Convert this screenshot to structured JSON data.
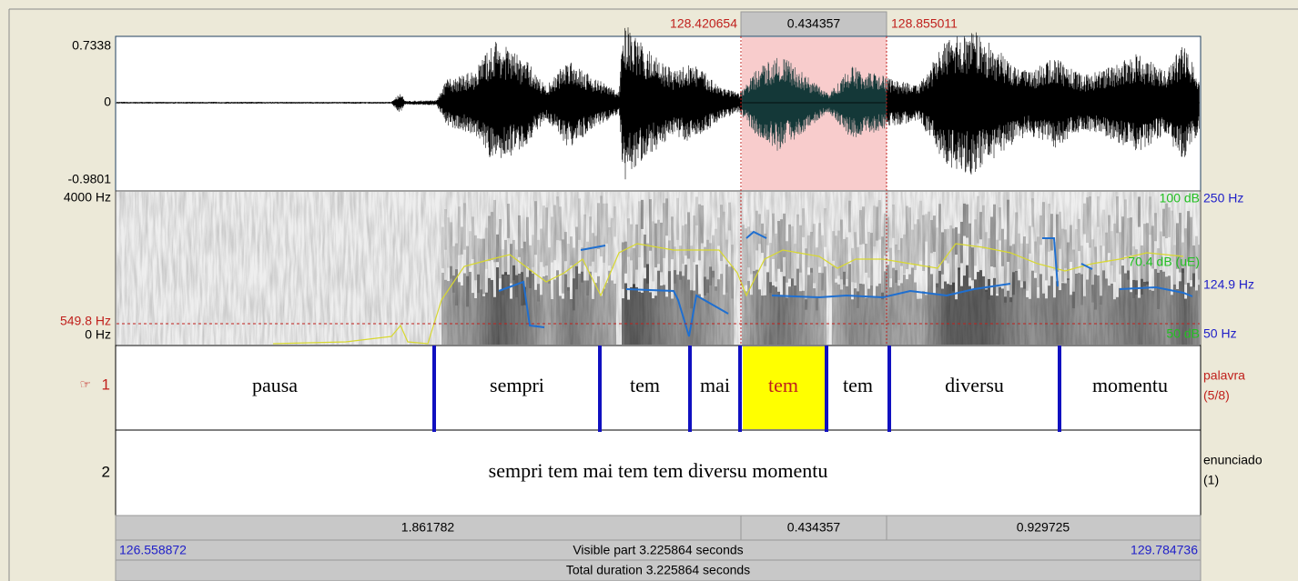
{
  "selection": {
    "start": "128.420654",
    "duration": "0.434357",
    "end": "128.855011"
  },
  "waveform": {
    "max": "0.7338",
    "zero": "0",
    "min": "-0.9801"
  },
  "spectrogram": {
    "freq_top": "4000 Hz",
    "cursor_freq": "549.8 Hz",
    "freq_bottom": "0 Hz",
    "pitch_top": "250 Hz",
    "pitch_cursor": "124.9 Hz",
    "pitch_bottom": "50 Hz",
    "intensity_top": "100 dB",
    "intensity_cursor": "70.4 dB (uE)",
    "intensity_bottom": "50 dB"
  },
  "tiers": [
    {
      "pointer": "☞",
      "number": "1",
      "name": "palavra",
      "info": "(5/8)",
      "intervals": [
        "pausa",
        "sempri",
        "tem",
        "mai",
        "tem",
        "tem",
        "diversu",
        "momentu"
      ]
    },
    {
      "number": "2",
      "name": "enunciado",
      "info": "(1)",
      "intervals": [
        "sempri tem mai tem tem diversu momentu"
      ]
    }
  ],
  "footer": {
    "before_selection": "1.861782",
    "selection": "0.434357",
    "after_selection": "0.929725",
    "visible_start": "126.558872",
    "visible_part": "Visible part 3.225864 seconds",
    "visible_end": "129.784736",
    "total": "Total duration 3.225864 seconds"
  }
}
